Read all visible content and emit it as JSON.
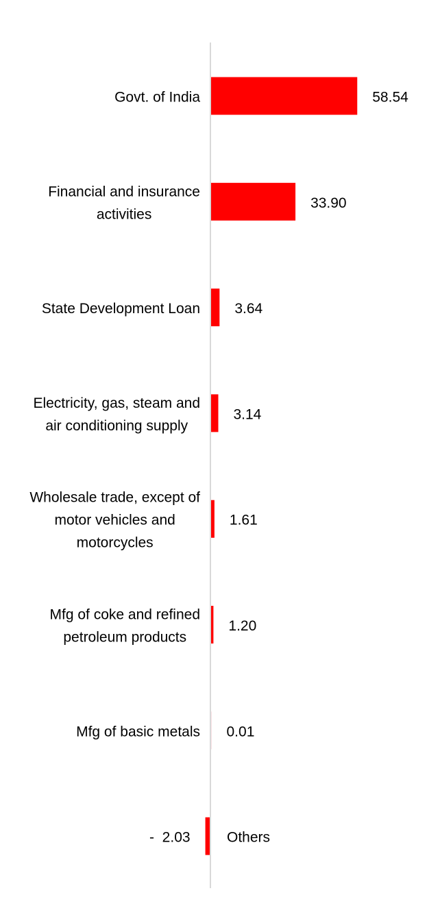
{
  "chart_data": {
    "type": "bar",
    "orientation": "horizontal",
    "categories": [
      "Govt. of India",
      "Financial and insurance activities",
      "State Development Loan",
      "Electricity, gas, steam and air conditioning supply",
      "Wholesale trade, except of motor vehicles and motorcycles",
      "Mfg of coke and refined petroleum products",
      "Mfg of basic metals",
      "Others"
    ],
    "category_lines": [
      [
        "Govt. of India"
      ],
      [
        "Financial and insurance",
        "activities"
      ],
      [
        "State Development Loan"
      ],
      [
        "Electricity, gas, steam and",
        "air conditioning supply"
      ],
      [
        "Wholesale trade, except of",
        "motor vehicles and",
        "motorcycles"
      ],
      [
        "Mfg of coke and refined",
        "petroleum products"
      ],
      [
        "Mfg of basic metals"
      ],
      [
        "Others"
      ]
    ],
    "values": [
      58.54,
      33.9,
      3.64,
      3.14,
      1.61,
      1.2,
      0.01,
      -2.03
    ],
    "value_labels": [
      "58.54",
      "33.90",
      "3.64",
      "3.14",
      "1.61",
      "1.20",
      "0.01",
      "-  2.03"
    ],
    "title": "",
    "xlabel": "",
    "ylabel": "",
    "grid": false,
    "legend": "none",
    "bar_color": "#ff0000",
    "faint_bar_color": "#f4c7cc",
    "axis_color": "#d9d9d9"
  }
}
